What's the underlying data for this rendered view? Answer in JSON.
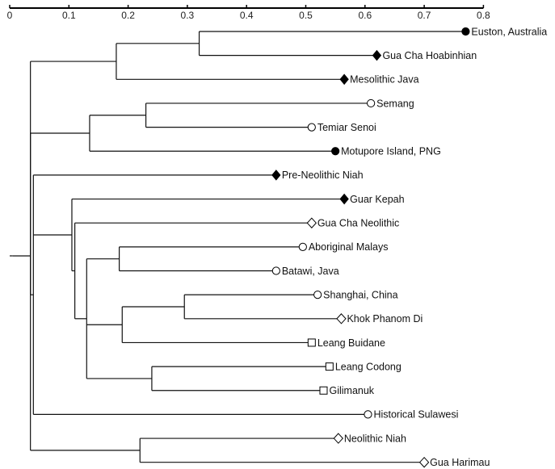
{
  "axis": {
    "ticks": [
      {
        "value": 0,
        "label": "0"
      },
      {
        "value": 0.1,
        "label": "0.1"
      },
      {
        "value": 0.2,
        "label": "0.2"
      },
      {
        "value": 0.3,
        "label": "0.3"
      },
      {
        "value": 0.4,
        "label": "0.4"
      },
      {
        "value": 0.5,
        "label": "0.5"
      },
      {
        "value": 0.6,
        "label": "0.6"
      },
      {
        "value": 0.7,
        "label": "0.7"
      },
      {
        "value": 0.8,
        "label": "0.8"
      }
    ],
    "range": [
      0,
      0.8
    ]
  },
  "tree": {
    "id": "root",
    "d": 0.005,
    "children": [
      {
        "id": "n-a",
        "d": 0.035,
        "children": [
          {
            "id": "n-b",
            "d": 0.18,
            "children": [
              {
                "id": "n-c",
                "d": 0.32,
                "children": [
                  {
                    "leaf": "Euston, Australia",
                    "d": 0.77,
                    "marker": "filled-circle"
                  },
                  {
                    "leaf": "Gua Cha Hoabinhian",
                    "d": 0.62,
                    "marker": "filled-diamond"
                  }
                ]
              },
              {
                "leaf": "Mesolithic Java",
                "d": 0.565,
                "marker": "filled-diamond"
              }
            ]
          },
          {
            "id": "n-d",
            "d": 0.035,
            "children": [
              {
                "id": "n-e",
                "d": 0.135,
                "children": [
                  {
                    "id": "n-f",
                    "d": 0.23,
                    "children": [
                      {
                        "leaf": "Semang",
                        "d": 0.61,
                        "marker": "open-circle"
                      },
                      {
                        "leaf": "Temiar Senoi",
                        "d": 0.51,
                        "marker": "open-circle"
                      }
                    ]
                  },
                  {
                    "leaf": "Motupore Island, PNG",
                    "d": 0.55,
                    "marker": "filled-circle"
                  }
                ]
              },
              {
                "id": "n-g",
                "d": 0.04,
                "children": [
                  {
                    "leaf": "Pre-Neolithic Niah",
                    "d": 0.45,
                    "marker": "filled-diamond"
                  },
                  {
                    "id": "n-h",
                    "d": 0.105,
                    "children": [
                      {
                        "leaf": "Guar Kepah",
                        "d": 0.565,
                        "marker": "filled-diamond"
                      },
                      {
                        "id": "n-i",
                        "d": 0.11,
                        "children": [
                          {
                            "leaf": "Gua Cha Neolithic",
                            "d": 0.51,
                            "marker": "open-diamond"
                          },
                          {
                            "id": "n-j",
                            "d": 0.13,
                            "children": [
                              {
                                "id": "n-k",
                                "d": 0.185,
                                "children": [
                                  {
                                    "leaf": "Aboriginal Malays",
                                    "d": 0.495,
                                    "marker": "open-circle"
                                  },
                                  {
                                    "leaf": "Batawi, Java",
                                    "d": 0.45,
                                    "marker": "open-circle"
                                  }
                                ]
                              },
                              {
                                "id": "n-l",
                                "d": 0.19,
                                "children": [
                                  {
                                    "id": "n-m",
                                    "d": 0.295,
                                    "children": [
                                      {
                                        "leaf": "Shanghai, China",
                                        "d": 0.52,
                                        "marker": "open-circle"
                                      },
                                      {
                                        "leaf": "Khok Phanom Di",
                                        "d": 0.56,
                                        "marker": "open-diamond"
                                      }
                                    ]
                                  },
                                  {
                                    "leaf": "Leang Buidane",
                                    "d": 0.51,
                                    "marker": "open-square"
                                  }
                                ]
                              },
                              {
                                "id": "n-n",
                                "d": 0.24,
                                "children": [
                                  {
                                    "leaf": "Leang Codong",
                                    "d": 0.54,
                                    "marker": "open-square"
                                  },
                                  {
                                    "leaf": "Gilimanuk",
                                    "d": 0.53,
                                    "marker": "open-square"
                                  }
                                ]
                              }
                            ]
                          }
                        ]
                      }
                    ]
                  },
                  {
                    "leaf": "Historical Sulawesi",
                    "d": 0.605,
                    "marker": "open-circle"
                  }
                ]
              }
            ]
          },
          {
            "id": "n-o",
            "d": 0.22,
            "children": [
              {
                "leaf": "Neolithic Niah",
                "d": 0.555,
                "marker": "open-diamond"
              },
              {
                "leaf": "Gua Harimau",
                "d": 0.7,
                "marker": "open-diamond"
              }
            ]
          }
        ]
      }
    ]
  }
}
